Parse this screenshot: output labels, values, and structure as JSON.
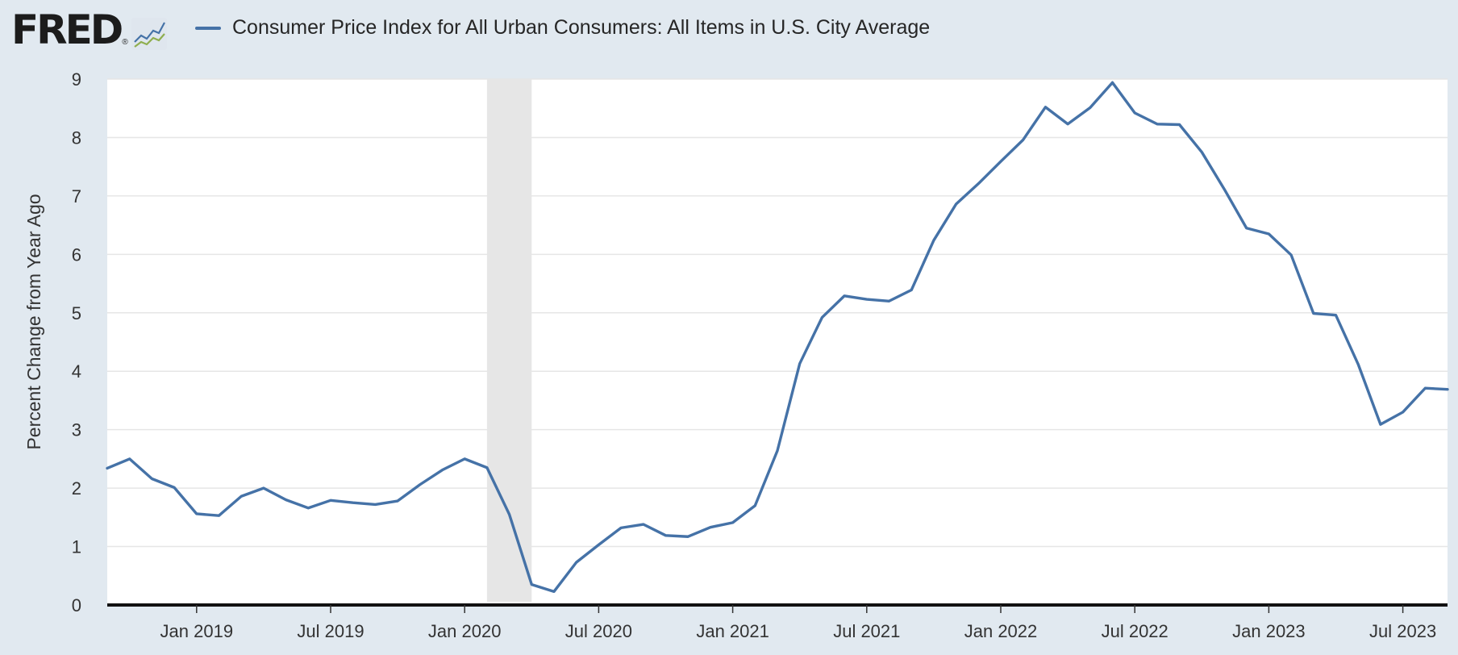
{
  "header": {
    "logo_text": "FRED",
    "logo_mark": "®",
    "logo_icon": "mini-line-chart-icon",
    "series_color": "#4572a7"
  },
  "chart_data": {
    "type": "line",
    "title": "Consumer Price Index for All Urban Consumers: All Items in U.S. City Average",
    "xlabel": "",
    "ylabel": "Percent Change from Year Ago",
    "ylim": [
      0,
      9
    ],
    "yticks": [
      0,
      1,
      2,
      3,
      4,
      5,
      6,
      7,
      8,
      9
    ],
    "xlim": [
      "2018-09",
      "2023-09"
    ],
    "xtick_labels": [
      {
        "date": "2019-01",
        "label": "Jan 2019"
      },
      {
        "date": "2019-07",
        "label": "Jul 2019"
      },
      {
        "date": "2020-01",
        "label": "Jan 2020"
      },
      {
        "date": "2020-07",
        "label": "Jul 2020"
      },
      {
        "date": "2021-01",
        "label": "Jan 2021"
      },
      {
        "date": "2021-07",
        "label": "Jul 2021"
      },
      {
        "date": "2022-01",
        "label": "Jan 2022"
      },
      {
        "date": "2022-07",
        "label": "Jul 2022"
      },
      {
        "date": "2023-01",
        "label": "Jan 2023"
      },
      {
        "date": "2023-07",
        "label": "Jul 2023"
      }
    ],
    "grid": true,
    "recession_shading": {
      "start": "2020-02",
      "end": "2020-04",
      "color": "#e6e6e6"
    },
    "series": [
      {
        "name": "Consumer Price Index for All Urban Consumers: All Items in U.S. City Average",
        "color": "#4572a7",
        "x": [
          "2018-09",
          "2018-10",
          "2018-11",
          "2018-12",
          "2019-01",
          "2019-02",
          "2019-03",
          "2019-04",
          "2019-05",
          "2019-06",
          "2019-07",
          "2019-08",
          "2019-09",
          "2019-10",
          "2019-11",
          "2019-12",
          "2020-01",
          "2020-02",
          "2020-03",
          "2020-04",
          "2020-05",
          "2020-06",
          "2020-07",
          "2020-08",
          "2020-09",
          "2020-10",
          "2020-11",
          "2020-12",
          "2021-01",
          "2021-02",
          "2021-03",
          "2021-04",
          "2021-05",
          "2021-06",
          "2021-07",
          "2021-08",
          "2021-09",
          "2021-10",
          "2021-11",
          "2021-12",
          "2022-01",
          "2022-02",
          "2022-03",
          "2022-04",
          "2022-05",
          "2022-06",
          "2022-07",
          "2022-08",
          "2022-09",
          "2022-10",
          "2022-11",
          "2022-12",
          "2023-01",
          "2023-02",
          "2023-03",
          "2023-04",
          "2023-05",
          "2023-06",
          "2023-07",
          "2023-08",
          "2023-09"
        ],
        "values": [
          2.34,
          2.5,
          2.16,
          2.01,
          1.56,
          1.53,
          1.86,
          2.0,
          1.8,
          1.66,
          1.79,
          1.75,
          1.72,
          1.78,
          2.06,
          2.31,
          2.5,
          2.35,
          1.55,
          0.35,
          0.23,
          0.73,
          1.03,
          1.32,
          1.38,
          1.19,
          1.17,
          1.33,
          1.41,
          1.7,
          2.64,
          4.13,
          4.92,
          5.29,
          5.23,
          5.2,
          5.39,
          6.24,
          6.86,
          7.21,
          7.59,
          7.96,
          8.52,
          8.23,
          8.51,
          8.94,
          8.42,
          8.23,
          8.22,
          7.75,
          7.12,
          6.45,
          6.35,
          5.99,
          4.99,
          4.96,
          4.12,
          3.09,
          3.3,
          3.71,
          3.69
        ]
      }
    ]
  }
}
